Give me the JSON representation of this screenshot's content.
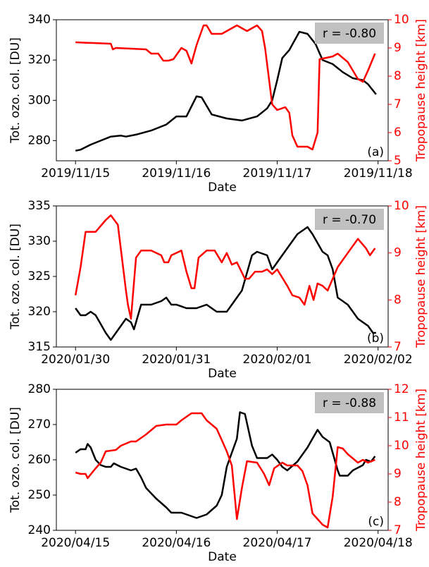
{
  "chart_data": [
    {
      "type": "line",
      "x_label": "Date",
      "y_label": "Tot. ozo. col. [DU]",
      "y2_label": "Tropopause height [km]",
      "annotation": "r = -0.80",
      "panel_label": "(a)",
      "xlim": [
        -0.19,
        3.1
      ],
      "xticks": [
        {
          "value": 0,
          "label": "2019/11/15"
        },
        {
          "value": 1,
          "label": "2019/11/16"
        },
        {
          "value": 2,
          "label": "2019/11/17"
        },
        {
          "value": 3,
          "label": "2019/11/18"
        }
      ],
      "ylim": [
        270,
        340
      ],
      "yticks": [
        280,
        300,
        320,
        340
      ],
      "y2lim": [
        5,
        10
      ],
      "y2ticks": [
        5,
        6,
        7,
        8,
        9,
        10
      ],
      "series": [
        {
          "color": "#000000",
          "x": [
            0,
            0.05,
            0.15,
            0.25,
            0.35,
            0.45,
            0.5,
            0.6,
            0.75,
            0.9,
            1.0,
            1.1,
            1.2,
            1.25,
            1.35,
            1.5,
            1.65,
            1.8,
            1.9,
            1.95,
            2.0,
            2.05,
            2.12,
            2.22,
            2.3,
            2.38,
            2.45,
            2.55,
            2.65,
            2.75,
            2.85,
            2.9,
            2.98
          ],
          "values": [
            275,
            275.5,
            278,
            280,
            282,
            282.5,
            282,
            283,
            285,
            288,
            292,
            292,
            302,
            301.5,
            293,
            291,
            290,
            292,
            296,
            300,
            310,
            321,
            325,
            334,
            333,
            328,
            320,
            318,
            314,
            311,
            310,
            308,
            303
          ]
        },
        {
          "color": "#ff0000",
          "axis": "y2",
          "x": [
            0,
            0.35,
            0.37,
            0.4,
            0.7,
            0.75,
            0.82,
            0.87,
            0.92,
            0.97,
            1.05,
            1.1,
            1.15,
            1.2,
            1.27,
            1.3,
            1.35,
            1.45,
            1.55,
            1.6,
            1.7,
            1.8,
            1.85,
            1.88,
            1.95,
            2.0,
            2.08,
            2.12,
            2.15,
            2.2,
            2.3,
            2.35,
            2.4,
            2.42,
            2.55,
            2.6,
            2.7,
            2.8,
            2.85,
            2.9,
            2.97
          ],
          "values": [
            9.2,
            9.15,
            8.95,
            9.0,
            8.95,
            8.8,
            8.8,
            8.55,
            8.55,
            8.6,
            9.0,
            8.9,
            8.45,
            9.1,
            9.8,
            9.8,
            9.5,
            9.5,
            9.7,
            9.8,
            9.6,
            9.8,
            9.6,
            9.0,
            7.0,
            6.8,
            6.9,
            6.7,
            5.9,
            5.5,
            5.5,
            5.4,
            6.0,
            8.6,
            8.7,
            8.8,
            8.5,
            7.9,
            7.8,
            8.2,
            8.8
          ]
        }
      ]
    },
    {
      "type": "line",
      "x_label": "Date",
      "y_label": "Tot. ozo. col. [DU]",
      "y2_label": "Tropopause height [km]",
      "annotation": "r = -0.70",
      "panel_label": "(b)",
      "xlim": [
        -0.19,
        3.1
      ],
      "xticks": [
        {
          "value": 0,
          "label": "2020/01/30"
        },
        {
          "value": 1,
          "label": "2020/01/31"
        },
        {
          "value": 2,
          "label": "2020/02/01"
        },
        {
          "value": 3,
          "label": "2020/02/02"
        }
      ],
      "ylim": [
        315,
        335
      ],
      "yticks": [
        315,
        320,
        325,
        330,
        335
      ],
      "y2lim": [
        7,
        10
      ],
      "y2ticks": [
        7,
        8,
        9,
        10
      ],
      "series": [
        {
          "color": "#000000",
          "x": [
            0,
            0.05,
            0.1,
            0.15,
            0.2,
            0.3,
            0.35,
            0.4,
            0.5,
            0.55,
            0.58,
            0.65,
            0.75,
            0.85,
            0.9,
            0.95,
            1.0,
            1.1,
            1.2,
            1.3,
            1.4,
            1.5,
            1.55,
            1.65,
            1.75,
            1.8,
            1.9,
            1.95,
            2.0,
            2.1,
            2.2,
            2.3,
            2.35,
            2.45,
            2.5,
            2.55,
            2.6,
            2.7,
            2.8,
            2.9,
            2.95,
            2.98
          ],
          "values": [
            320.5,
            319.5,
            319.5,
            320,
            319.5,
            317,
            316,
            317,
            319,
            318.5,
            317.5,
            321,
            321,
            321.5,
            322,
            321,
            321,
            320.5,
            320.5,
            321,
            320,
            320,
            321,
            323,
            328,
            328.5,
            328,
            326,
            327,
            329,
            331,
            332,
            331,
            328.5,
            328,
            326,
            322,
            321,
            319,
            318,
            317,
            317
          ]
        },
        {
          "color": "#ff0000",
          "axis": "y2",
          "x": [
            0,
            0.05,
            0.1,
            0.2,
            0.3,
            0.35,
            0.42,
            0.5,
            0.52,
            0.55,
            0.6,
            0.65,
            0.75,
            0.85,
            0.88,
            0.92,
            0.95,
            1.05,
            1.1,
            1.15,
            1.18,
            1.22,
            1.3,
            1.38,
            1.45,
            1.5,
            1.55,
            1.6,
            1.68,
            1.72,
            1.78,
            1.85,
            1.9,
            1.95,
            2.0,
            2.1,
            2.15,
            2.22,
            2.27,
            2.32,
            2.36,
            2.4,
            2.45,
            2.5,
            2.55,
            2.6,
            2.7,
            2.8,
            2.88,
            2.92,
            2.97
          ],
          "values": [
            8.1,
            8.7,
            9.45,
            9.45,
            9.7,
            9.8,
            9.6,
            8.2,
            7.9,
            7.6,
            8.9,
            9.05,
            9.05,
            8.95,
            8.8,
            8.8,
            8.95,
            9.05,
            8.6,
            8.25,
            8.25,
            8.9,
            9.05,
            9.05,
            8.8,
            9.0,
            8.75,
            8.8,
            8.45,
            8.45,
            8.6,
            8.6,
            8.65,
            8.55,
            8.65,
            8.3,
            8.1,
            8.05,
            7.9,
            8.3,
            8.0,
            8.35,
            8.3,
            8.2,
            8.45,
            8.7,
            9.0,
            9.3,
            9.1,
            8.95,
            9.1
          ]
        }
      ]
    },
    {
      "type": "line",
      "x_label": "Date",
      "y_label": "Tot. ozo. col. [DU]",
      "y2_label": "Tropopause height [km]",
      "annotation": "r = -0.88",
      "panel_label": "(c)",
      "xlim": [
        -0.19,
        3.1
      ],
      "xticks": [
        {
          "value": 0,
          "label": "2020/04/15"
        },
        {
          "value": 1,
          "label": "2020/04/16"
        },
        {
          "value": 2,
          "label": "2020/04/17"
        },
        {
          "value": 3,
          "label": "2020/04/18"
        }
      ],
      "ylim": [
        240,
        280
      ],
      "yticks": [
        240,
        250,
        260,
        270,
        280
      ],
      "y2lim": [
        7,
        12
      ],
      "y2ticks": [
        7,
        8,
        9,
        10,
        11,
        12
      ],
      "series": [
        {
          "color": "#000000",
          "x": [
            0,
            0.05,
            0.1,
            0.12,
            0.15,
            0.2,
            0.25,
            0.3,
            0.35,
            0.38,
            0.45,
            0.55,
            0.6,
            0.65,
            0.7,
            0.8,
            0.9,
            0.95,
            1.05,
            1.1,
            1.2,
            1.3,
            1.4,
            1.45,
            1.5,
            1.6,
            1.63,
            1.68,
            1.75,
            1.8,
            1.9,
            1.95,
            2.0,
            2.05,
            2.1,
            2.2,
            2.3,
            2.35,
            2.4,
            2.45,
            2.52,
            2.6,
            2.62,
            2.7,
            2.75,
            2.85,
            2.88,
            2.93,
            2.97
          ],
          "values": [
            262,
            263,
            263,
            264.5,
            263.5,
            260,
            258.5,
            258,
            258,
            259,
            258,
            257,
            257.5,
            255,
            252,
            249,
            246.5,
            245,
            245,
            244.5,
            243.5,
            244.5,
            247,
            250,
            258,
            266,
            273.5,
            273,
            264,
            260.5,
            260.5,
            261.5,
            260,
            258,
            257,
            259.5,
            263.5,
            266,
            268.5,
            266.5,
            265,
            257,
            255.5,
            255.5,
            257,
            258.5,
            260,
            259.5,
            261
          ]
        },
        {
          "color": "#ff0000",
          "axis": "y2",
          "x": [
            0,
            0.05,
            0.1,
            0.12,
            0.2,
            0.25,
            0.3,
            0.4,
            0.45,
            0.55,
            0.6,
            0.7,
            0.8,
            0.9,
            1.0,
            1.05,
            1.15,
            1.25,
            1.3,
            1.4,
            1.45,
            1.5,
            1.55,
            1.6,
            1.65,
            1.7,
            1.8,
            1.87,
            1.92,
            1.97,
            2.05,
            2.1,
            2.2,
            2.25,
            2.3,
            2.35,
            2.45,
            2.5,
            2.55,
            2.6,
            2.65,
            2.7,
            2.8,
            2.85,
            2.9,
            2.97
          ],
          "values": [
            9.05,
            9.0,
            9.0,
            8.85,
            9.2,
            9.4,
            9.8,
            9.85,
            10.0,
            10.15,
            10.15,
            10.4,
            10.7,
            10.75,
            10.75,
            10.9,
            11.15,
            11.15,
            10.9,
            10.6,
            10.2,
            9.8,
            9.3,
            7.4,
            8.5,
            9.45,
            9.4,
            9.0,
            8.6,
            9.2,
            9.4,
            9.3,
            9.3,
            9.1,
            8.6,
            7.6,
            7.2,
            7.1,
            8.2,
            9.95,
            9.9,
            9.7,
            9.4,
            9.5,
            9.4,
            9.5
          ]
        }
      ]
    }
  ]
}
